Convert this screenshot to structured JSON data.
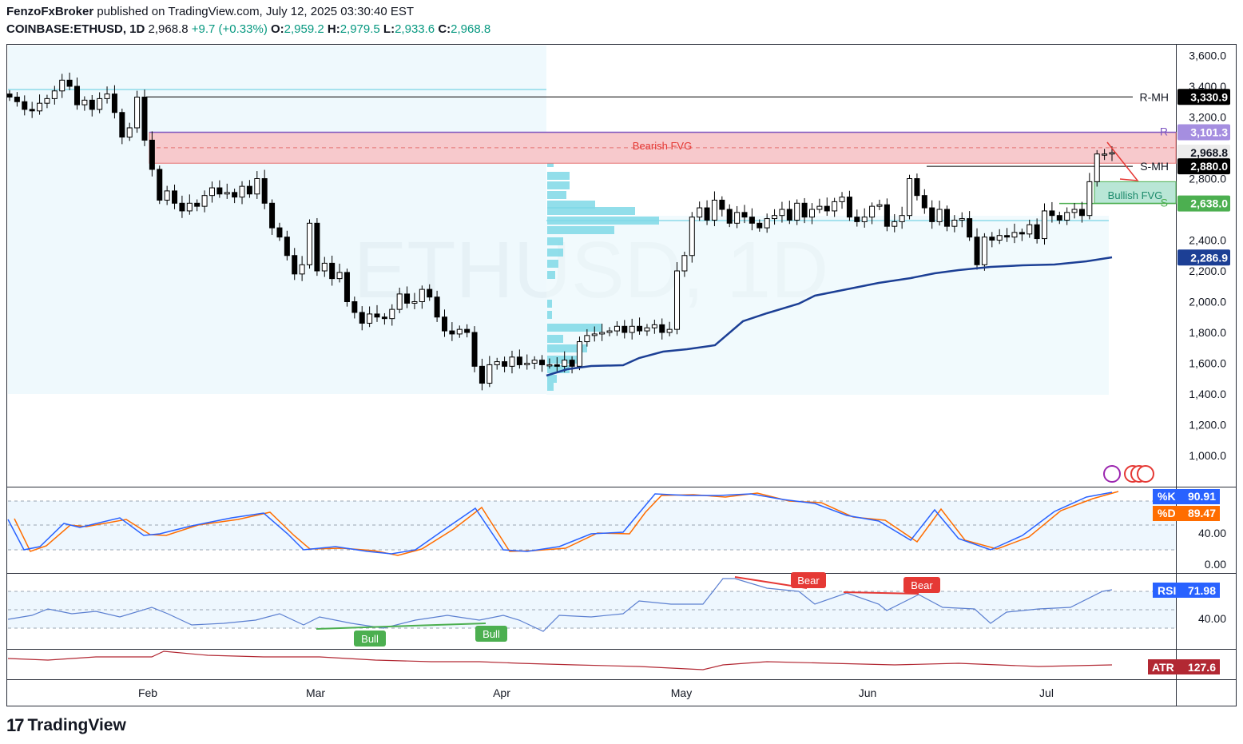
{
  "header": {
    "line1_author": "FenzoFxBroker",
    "line1_rest": " published on TradingView.com, July 12, 2025 03:30:40 EST",
    "symbol": "COINBASE:ETHUSD, 1D",
    "last": "2,968.8",
    "change": "+9.7 (+0.33%)",
    "open_label": "O:",
    "open": "2,959.2",
    "high_label": "H:",
    "high": "2,979.5",
    "low_label": "L:",
    "low": "2,933.6",
    "close_label": "C:",
    "close": "2,968.8"
  },
  "watermark": "ETHUSD, 1D",
  "footer": {
    "brand": "TradingView"
  },
  "colors": {
    "up": "#ffffff",
    "down": "#000000",
    "wick": "#000000",
    "bearish_fvg": "#f7c9cc",
    "bullish_fvg": "#b9e6d6",
    "ma": "#1c3f95",
    "stoch_k": "#2962ff",
    "stoch_d": "#ff6d00",
    "rsi": "#5b7fd0",
    "atr": "#b22833",
    "profile": "#7fd8e6"
  },
  "chart_data": [
    {
      "type": "candlestick",
      "title": "ETHUSD, 1D",
      "x_axis_labels": [
        "Feb",
        "Mar",
        "Apr",
        "May",
        "Jun",
        "Jul"
      ],
      "y_ticks": [
        "3,600.0",
        "3,400.0",
        "3,200.0",
        "2,800.0",
        "2,400.0",
        "2,200.0",
        "2,000.0",
        "1,800.0",
        "1,600.0",
        "1,400.0",
        "1,200.0",
        "1,000.0"
      ],
      "ylim": [
        830,
        3680
      ],
      "close_path": [
        3330,
        3300,
        3250,
        3240,
        3290,
        3320,
        3370,
        3440,
        3400,
        3280,
        3310,
        3250,
        3320,
        3350,
        3230,
        3070,
        3130,
        3330,
        3050,
        2860,
        2660,
        2720,
        2640,
        2590,
        2640,
        2620,
        2690,
        2740,
        2700,
        2710,
        2680,
        2750,
        2700,
        2800,
        2640,
        2480,
        2420,
        2300,
        2180,
        2240,
        2510,
        2200,
        2250,
        2150,
        2190,
        2000,
        1930,
        1860,
        1920,
        1900,
        1890,
        1950,
        2050,
        1990,
        2000,
        2080,
        2030,
        1900,
        1810,
        1790,
        1820,
        1800,
        1580,
        1470,
        1590,
        1610,
        1580,
        1640,
        1590,
        1600,
        1620,
        1590,
        1590,
        1580,
        1620,
        1580,
        1740,
        1780,
        1790,
        1800,
        1810,
        1840,
        1800,
        1840,
        1810,
        1830,
        1850,
        1800,
        1820,
        2200,
        2300,
        2550,
        2610,
        2530,
        2660,
        2600,
        2510,
        2580,
        2550,
        2510,
        2480,
        2540,
        2560,
        2600,
        2530,
        2640,
        2550,
        2600,
        2620,
        2590,
        2650,
        2680,
        2550,
        2520,
        2550,
        2620,
        2630,
        2490,
        2520,
        2560,
        2800,
        2690,
        2610,
        2520,
        2600,
        2490,
        2530,
        2540,
        2420,
        2240,
        2420,
        2400,
        2430,
        2420,
        2450,
        2440,
        2500,
        2410,
        2590,
        2560,
        2530,
        2580,
        2600,
        2560,
        2780,
        2960,
        2960,
        2969
      ],
      "levels": [
        {
          "name": "R-MH",
          "value": 3330.9,
          "label": "3,330.9"
        },
        {
          "name": "R",
          "value": 3101.3,
          "label": "3,101.3"
        },
        {
          "name": "last",
          "value": 2968.8,
          "label": "2,968.8"
        },
        {
          "name": "S-MH",
          "value": 2880.0,
          "label": "2,880.0"
        },
        {
          "name": "S",
          "value": 2638.0,
          "label": "2,638.0"
        },
        {
          "name": "MA",
          "value": 2286.9,
          "label": "2,286.9"
        }
      ],
      "zones": [
        {
          "name": "Bearish FVG",
          "from": 2900,
          "to": 3101
        },
        {
          "name": "Bullish FVG",
          "from": 2640,
          "to": 2780
        }
      ]
    },
    {
      "type": "line",
      "title": "Stochastic",
      "y_ticks": [
        "40.00",
        "0.00"
      ],
      "series": [
        {
          "name": "%K",
          "value": "90.91"
        },
        {
          "name": "%D",
          "value": "89.47"
        }
      ]
    },
    {
      "type": "line",
      "title": "RSI",
      "y_ticks": [
        "40.00"
      ],
      "series": [
        {
          "name": "RSI",
          "value": "71.98"
        }
      ],
      "annotations": [
        "Bear",
        "Bear",
        "Bull",
        "Bull"
      ]
    },
    {
      "type": "line",
      "title": "ATR",
      "series": [
        {
          "name": "ATR",
          "value": "127.6"
        }
      ]
    }
  ]
}
